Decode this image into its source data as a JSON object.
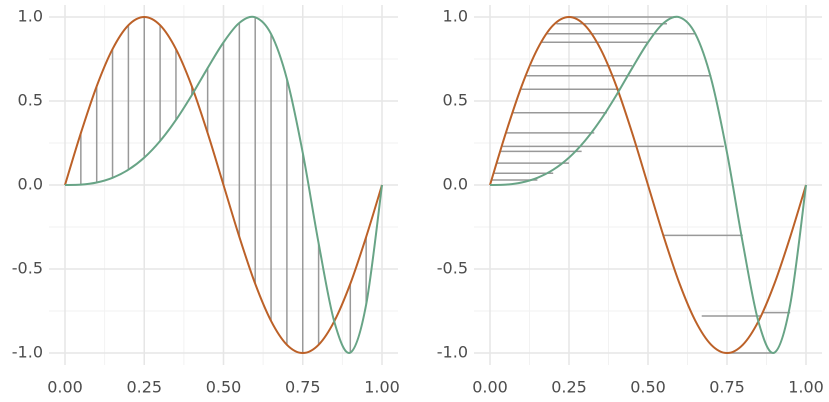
{
  "chart_data": [
    {
      "type": "line",
      "vertical_links": true,
      "x": [
        0,
        0.05,
        0.1,
        0.15,
        0.2,
        0.25,
        0.3,
        0.35,
        0.4,
        0.45,
        0.5,
        0.55,
        0.6,
        0.65,
        0.7,
        0.75,
        0.8,
        0.85,
        0.9,
        0.95,
        1
      ],
      "series": [
        {
          "color": "#bc6128",
          "values": [
            0,
            0.309,
            0.588,
            0.809,
            0.951,
            1,
            0.951,
            0.809,
            0.588,
            0.309,
            0,
            -0.309,
            -0.588,
            -0.809,
            -0.951,
            -1,
            -0.951,
            -0.809,
            -0.588,
            -0.309,
            0
          ]
        },
        {
          "color": "#68a486",
          "values": [
            0,
            0.002,
            0.015,
            0.043,
            0.091,
            0.163,
            0.262,
            0.387,
            0.535,
            0.696,
            0.849,
            0.965,
            0.998,
            0.899,
            0.631,
            0.192,
            -0.346,
            -0.817,
            -0.998,
            -0.712,
            0
          ]
        }
      ],
      "xlim": [
        0,
        1
      ],
      "ylim": [
        -1,
        1
      ],
      "xticks": [
        {
          "value": 0,
          "label": "0.00"
        },
        {
          "value": 0.25,
          "label": "0.25"
        },
        {
          "value": 0.5,
          "label": "0.50"
        },
        {
          "value": 0.75,
          "label": "0.75"
        },
        {
          "value": 1,
          "label": "1.00"
        }
      ],
      "yticks": [
        {
          "value": -1,
          "label": "-1.0"
        },
        {
          "value": -0.5,
          "label": "-0.5"
        },
        {
          "value": 0,
          "label": "0.0"
        },
        {
          "value": 0.5,
          "label": "0.5"
        },
        {
          "value": 1,
          "label": "1.0"
        }
      ],
      "xgrid_minor": [
        0.125,
        0.375,
        0.625,
        0.875
      ],
      "ygrid_minor": [
        -0.75,
        -0.25,
        0.25,
        0.75
      ]
    },
    {
      "type": "line",
      "x": [
        0,
        0.05,
        0.1,
        0.15,
        0.2,
        0.25,
        0.3,
        0.35,
        0.4,
        0.45,
        0.5,
        0.55,
        0.6,
        0.65,
        0.7,
        0.75,
        0.8,
        0.85,
        0.9,
        0.95,
        1
      ],
      "series": [
        {
          "color": "#bc6128",
          "values": [
            0,
            0.309,
            0.588,
            0.809,
            0.951,
            1,
            0.951,
            0.809,
            0.588,
            0.309,
            0,
            -0.309,
            -0.588,
            -0.809,
            -0.951,
            -1,
            -0.951,
            -0.809,
            -0.588,
            -0.309,
            0
          ]
        },
        {
          "color": "#68a486",
          "values": [
            0,
            0.002,
            0.015,
            0.043,
            0.091,
            0.163,
            0.262,
            0.387,
            0.535,
            0.696,
            0.849,
            0.965,
            0.998,
            0.899,
            0.631,
            0.192,
            -0.346,
            -0.817,
            -0.998,
            -0.712,
            0
          ]
        }
      ],
      "segments": [
        {
          "y": 1.0,
          "x1": 0.25,
          "x2": 0.59
        },
        {
          "y": 0.96,
          "x1": 0.21,
          "x2": 0.56
        },
        {
          "y": 0.9,
          "x1": 0.18,
          "x2": 0.65
        },
        {
          "y": 0.85,
          "x1": 0.16,
          "x2": 0.5
        },
        {
          "y": 0.71,
          "x1": 0.13,
          "x2": 0.45
        },
        {
          "y": 0.65,
          "x1": 0.11,
          "x2": 0.7
        },
        {
          "y": 0.57,
          "x1": 0.1,
          "x2": 0.41
        },
        {
          "y": 0.43,
          "x1": 0.07,
          "x2": 0.37
        },
        {
          "y": 0.31,
          "x1": 0.05,
          "x2": 0.33
        },
        {
          "y": 0.23,
          "x1": 0.04,
          "x2": 0.74
        },
        {
          "y": 0.2,
          "x1": 0.03,
          "x2": 0.29
        },
        {
          "y": 0.13,
          "x1": 0.02,
          "x2": 0.25
        },
        {
          "y": 0.07,
          "x1": 0.01,
          "x2": 0.2
        },
        {
          "y": 0.03,
          "x1": 0.005,
          "x2": 0.15
        },
        {
          "y": -0.3,
          "x1": 0.55,
          "x2": 0.8
        },
        {
          "y": -0.78,
          "x1": 0.67,
          "x2": 0.86
        },
        {
          "y": -0.76,
          "x1": 0.86,
          "x2": 0.95
        },
        {
          "y": -1.0,
          "x1": 0.75,
          "x2": 0.9
        }
      ],
      "xlim": [
        0,
        1
      ],
      "ylim": [
        -1,
        1
      ],
      "xticks": [
        {
          "value": 0,
          "label": "0.00"
        },
        {
          "value": 0.25,
          "label": "0.25"
        },
        {
          "value": 0.5,
          "label": "0.50"
        },
        {
          "value": 0.75,
          "label": "0.75"
        },
        {
          "value": 1,
          "label": "1.00"
        }
      ],
      "yticks": [
        {
          "value": -1,
          "label": "-1.0"
        },
        {
          "value": -0.5,
          "label": "-0.5"
        },
        {
          "value": 0,
          "label": "0.0"
        },
        {
          "value": 0.5,
          "label": "0.5"
        },
        {
          "value": 1,
          "label": "1.0"
        }
      ],
      "xgrid_minor": [
        0.125,
        0.375,
        0.625,
        0.875
      ],
      "ygrid_minor": [
        -0.75,
        -0.25,
        0.25,
        0.75
      ]
    }
  ]
}
